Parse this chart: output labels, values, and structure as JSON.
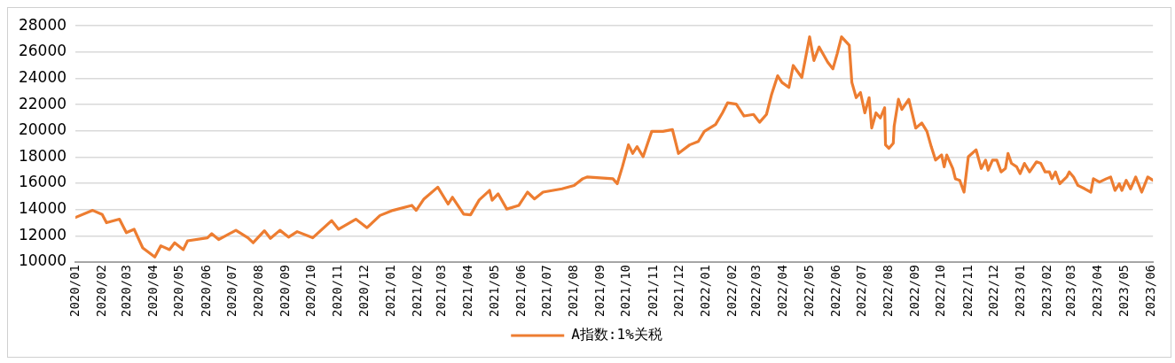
{
  "chart_data": {
    "type": "line",
    "x": [
      "2020-01-01",
      "2020-01-21",
      "2020-02-01",
      "2020-02-06",
      "2020-02-21",
      "2020-02-29",
      "2020-03-09",
      "2020-03-19",
      "2020-04-02",
      "2020-04-09",
      "2020-04-19",
      "2020-04-25",
      "2020-05-05",
      "2020-05-10",
      "2020-06-02",
      "2020-06-07",
      "2020-06-15",
      "2020-07-05",
      "2020-07-19",
      "2020-07-25",
      "2020-08-07",
      "2020-08-14",
      "2020-08-25",
      "2020-09-04",
      "2020-09-14",
      "2020-10-02",
      "2020-10-24",
      "2020-11-01",
      "2020-11-21",
      "2020-12-04",
      "2020-12-19",
      "2021-01-03",
      "2021-01-25",
      "2021-01-30",
      "2021-02-08",
      "2021-02-24",
      "2021-03-08",
      "2021-03-13",
      "2021-03-26",
      "2021-04-03",
      "2021-04-13",
      "2021-04-25",
      "2021-04-28",
      "2021-05-05",
      "2021-05-15",
      "2021-05-29",
      "2021-06-08",
      "2021-06-16",
      "2021-06-26",
      "2021-07-18",
      "2021-08-01",
      "2021-08-11",
      "2021-08-16",
      "2021-09-15",
      "2021-09-20",
      "2021-09-26",
      "2021-10-03",
      "2021-10-08",
      "2021-10-13",
      "2021-10-20",
      "2021-10-30",
      "2021-11-12",
      "2021-11-23",
      "2021-11-30",
      "2021-12-13",
      "2021-12-23",
      "2021-12-30",
      "2022-01-12",
      "2022-01-20",
      "2022-01-26",
      "2022-02-05",
      "2022-02-14",
      "2022-02-25",
      "2022-03-04",
      "2022-03-12",
      "2022-03-18",
      "2022-03-25",
      "2022-03-30",
      "2022-04-07",
      "2022-04-12",
      "2022-04-22",
      "2022-05-01",
      "2022-05-06",
      "2022-05-12",
      "2022-05-22",
      "2022-05-28",
      "2022-06-02",
      "2022-06-07",
      "2022-06-16",
      "2022-06-19",
      "2022-06-24",
      "2022-06-29",
      "2022-07-04",
      "2022-07-09",
      "2022-07-12",
      "2022-07-17",
      "2022-07-22",
      "2022-07-27",
      "2022-07-28",
      "2022-08-01",
      "2022-08-06",
      "2022-08-07",
      "2022-08-12",
      "2022-08-16",
      "2022-08-24",
      "2022-09-01",
      "2022-09-08",
      "2022-09-14",
      "2022-09-19",
      "2022-09-24",
      "2022-10-01",
      "2022-10-04",
      "2022-10-07",
      "2022-10-14",
      "2022-10-17",
      "2022-10-22",
      "2022-10-27",
      "2022-11-01",
      "2022-11-10",
      "2022-11-16",
      "2022-11-21",
      "2022-11-24",
      "2022-11-29",
      "2022-12-04",
      "2022-12-09",
      "2022-12-14",
      "2022-12-17",
      "2022-12-21",
      "2022-12-27",
      "2022-12-31",
      "2023-01-05",
      "2023-01-11",
      "2023-01-19",
      "2023-01-24",
      "2023-01-29",
      "2023-02-03",
      "2023-02-06",
      "2023-02-10",
      "2023-02-15",
      "2023-02-23",
      "2023-02-26",
      "2023-03-03",
      "2023-03-08",
      "2023-03-16",
      "2023-03-23",
      "2023-03-26",
      "2023-04-02",
      "2023-04-10",
      "2023-04-15",
      "2023-04-20",
      "2023-04-25",
      "2023-04-28",
      "2023-05-03",
      "2023-05-08",
      "2023-05-14",
      "2023-05-21",
      "2023-05-28",
      "2023-06-03"
    ],
    "series": [
      {
        "name": "A指数:1%关税",
        "color": "#ed7d31",
        "values": [
          13400,
          13940,
          13630,
          13000,
          13270,
          12240,
          12500,
          11080,
          10390,
          11240,
          10950,
          11470,
          10950,
          11620,
          11850,
          12160,
          11720,
          12420,
          11850,
          11470,
          12390,
          11800,
          12420,
          11900,
          12320,
          11850,
          13160,
          12500,
          13270,
          12620,
          13550,
          13940,
          14320,
          13940,
          14810,
          15710,
          14420,
          14940,
          13650,
          13600,
          14730,
          15460,
          14710,
          15200,
          14040,
          14320,
          15330,
          14810,
          15330,
          15580,
          15840,
          16350,
          16480,
          16350,
          15970,
          17260,
          18930,
          18280,
          18800,
          18030,
          19960,
          19960,
          20090,
          18280,
          18930,
          19190,
          19960,
          20480,
          21370,
          22140,
          22030,
          21130,
          21250,
          20650,
          21250,
          22790,
          24200,
          23690,
          23310,
          24980,
          24070,
          27160,
          25360,
          26390,
          25230,
          24720,
          25880,
          27160,
          26520,
          23690,
          22530,
          22920,
          21370,
          22530,
          20210,
          21370,
          20980,
          21760,
          18930,
          18670,
          19060,
          20340,
          22400,
          21630,
          22400,
          20210,
          20600,
          19960,
          18800,
          17770,
          18160,
          17260,
          18160,
          17130,
          16350,
          16230,
          15330,
          18030,
          18550,
          17130,
          17770,
          17000,
          17770,
          17770,
          16870,
          17130,
          18280,
          17520,
          17260,
          16740,
          17520,
          16870,
          17640,
          17520,
          16870,
          16870,
          16350,
          16870,
          15970,
          16480,
          16870,
          16480,
          15840,
          15580,
          15330,
          16350,
          16100,
          16350,
          16480,
          15460,
          15970,
          15460,
          16230,
          15580,
          16480,
          15330,
          16480,
          16230
        ]
      }
    ],
    "xlim": [
      "2020-01-01",
      "2023-06-03"
    ],
    "xticks": [
      {
        "value": "2020-01-01",
        "label": "2020/01"
      },
      {
        "value": "2020-02-01",
        "label": "2020/02"
      },
      {
        "value": "2020-03-01",
        "label": "2020/03"
      },
      {
        "value": "2020-04-01",
        "label": "2020/04"
      },
      {
        "value": "2020-05-01",
        "label": "2020/05"
      },
      {
        "value": "2020-06-01",
        "label": "2020/06"
      },
      {
        "value": "2020-07-01",
        "label": "2020/07"
      },
      {
        "value": "2020-08-01",
        "label": "2020/08"
      },
      {
        "value": "2020-09-01",
        "label": "2020/09"
      },
      {
        "value": "2020-10-01",
        "label": "2020/10"
      },
      {
        "value": "2020-11-01",
        "label": "2020/11"
      },
      {
        "value": "2020-12-01",
        "label": "2020/12"
      },
      {
        "value": "2021-01-01",
        "label": "2021/01"
      },
      {
        "value": "2021-02-01",
        "label": "2021/02"
      },
      {
        "value": "2021-03-01",
        "label": "2021/03"
      },
      {
        "value": "2021-04-01",
        "label": "2021/04"
      },
      {
        "value": "2021-05-01",
        "label": "2021/05"
      },
      {
        "value": "2021-06-01",
        "label": "2021/06"
      },
      {
        "value": "2021-07-01",
        "label": "2021/07"
      },
      {
        "value": "2021-08-01",
        "label": "2021/08"
      },
      {
        "value": "2021-09-01",
        "label": "2021/09"
      },
      {
        "value": "2021-10-01",
        "label": "2021/10"
      },
      {
        "value": "2021-11-01",
        "label": "2021/11"
      },
      {
        "value": "2021-12-01",
        "label": "2021/12"
      },
      {
        "value": "2022-01-01",
        "label": "2022/01"
      },
      {
        "value": "2022-02-01",
        "label": "2022/02"
      },
      {
        "value": "2022-03-01",
        "label": "2022/03"
      },
      {
        "value": "2022-04-01",
        "label": "2022/04"
      },
      {
        "value": "2022-05-01",
        "label": "2022/05"
      },
      {
        "value": "2022-06-01",
        "label": "2022/06"
      },
      {
        "value": "2022-07-01",
        "label": "2022/07"
      },
      {
        "value": "2022-08-01",
        "label": "2022/08"
      },
      {
        "value": "2022-09-01",
        "label": "2022/09"
      },
      {
        "value": "2022-10-01",
        "label": "2022/10"
      },
      {
        "value": "2022-11-01",
        "label": "2022/11"
      },
      {
        "value": "2022-12-01",
        "label": "2022/12"
      },
      {
        "value": "2023-01-01",
        "label": "2023/01"
      },
      {
        "value": "2023-02-01",
        "label": "2023/02"
      },
      {
        "value": "2023-03-01",
        "label": "2023/03"
      },
      {
        "value": "2023-04-01",
        "label": "2023/04"
      },
      {
        "value": "2023-05-01",
        "label": "2023/05"
      },
      {
        "value": "2023-06-01",
        "label": "2023/06"
      }
    ],
    "ylim": [
      10000,
      28000
    ],
    "yticks": [
      10000,
      12000,
      14000,
      16000,
      18000,
      20000,
      22000,
      24000,
      26000,
      28000
    ],
    "grid": "y",
    "legend": "bottom",
    "marker": "none",
    "line_style": "solid"
  }
}
